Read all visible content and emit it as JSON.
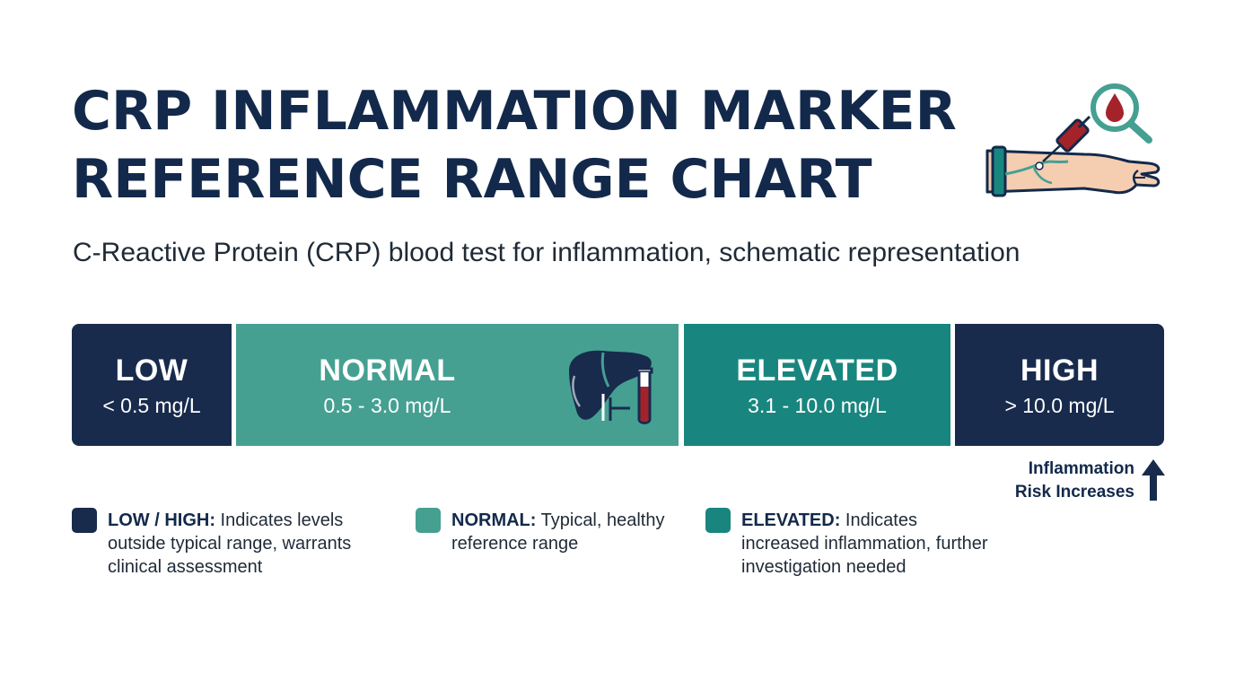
{
  "header": {
    "title_line1": "CRP INFLAMMATION MARKER",
    "title_line2": "REFERENCE RANGE CHART",
    "subtitle": "C-Reactive Protein (CRP) blood test for inflammation, schematic representation"
  },
  "colors": {
    "navy": "#182b4d",
    "normal_teal": "#45a092",
    "elevated_teal": "#18867f",
    "blood_red": "#a4232b",
    "skin": "#f5cdb0"
  },
  "icons": {
    "hero": "arm-blood-draw-magnifier-icon",
    "organ": "liver-test-tube-icon",
    "risk": "arrow-up-icon"
  },
  "ranges": [
    {
      "label": "LOW",
      "range": "< 0.5 mg/L"
    },
    {
      "label": "NORMAL",
      "range": "0.5 - 3.0 mg/L"
    },
    {
      "label": "ELEVATED",
      "range": "3.1 - 10.0 mg/L"
    },
    {
      "label": "HIGH",
      "range": "> 10.0 mg/L"
    }
  ],
  "risk_note": {
    "line1": "Inflammation",
    "line2": "Risk Increases"
  },
  "legend": [
    {
      "key": "LOW / HIGH:",
      "line1": " Indicates levels",
      "line2": "outside typical range, warrants",
      "line3": "clinical assessment"
    },
    {
      "key": "NORMAL:",
      "line1": " Typical, healthy",
      "line2": "reference range"
    },
    {
      "key": "ELEVATED:",
      "line1": " Indicates",
      "line2": "increased inflammation, further",
      "line3": "investigation needed"
    }
  ]
}
